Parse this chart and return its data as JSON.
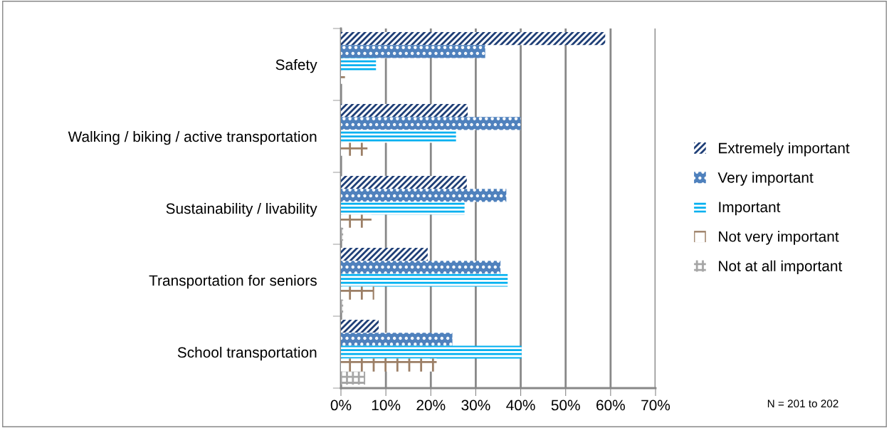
{
  "chart_data": {
    "type": "bar",
    "orientation": "horizontal",
    "categories": [
      "Safety",
      "Walking / biking / active transportation",
      "Sustainability / livability",
      "Transportation for seniors",
      "School transportation"
    ],
    "series": [
      {
        "name": "Extremely important",
        "color": "#1f3f77",
        "values": [
          58.8,
          28.2,
          28.0,
          19.3,
          8.4
        ]
      },
      {
        "name": "Very important",
        "color": "#4f81bd",
        "values": [
          32.1,
          40.0,
          36.8,
          35.5,
          24.8
        ]
      },
      {
        "name": "Important",
        "color": "#00b0f0",
        "values": [
          7.8,
          25.6,
          27.5,
          37.1,
          40.2
        ]
      },
      {
        "name": "Not very important",
        "color": "#9c7f66",
        "values": [
          0.9,
          5.9,
          6.8,
          7.4,
          21.3
        ]
      },
      {
        "name": "Not at all important",
        "color": "#a6a6a6",
        "values": [
          0.0,
          0.0,
          0.5,
          0.5,
          5.4
        ]
      }
    ],
    "xlim": [
      0,
      70
    ],
    "xticks": [
      {
        "value": 0,
        "label": "0%"
      },
      {
        "value": 10,
        "label": "10%"
      },
      {
        "value": 20,
        "label": "20%"
      },
      {
        "value": 30,
        "label": "30%"
      },
      {
        "value": 40,
        "label": "40%"
      },
      {
        "value": 50,
        "label": "50%"
      },
      {
        "value": 60,
        "label": "60%"
      },
      {
        "value": 70,
        "label": "70%"
      }
    ],
    "grid": "x",
    "legend": "right",
    "annotations": [
      "N = 201 to 202"
    ]
  }
}
